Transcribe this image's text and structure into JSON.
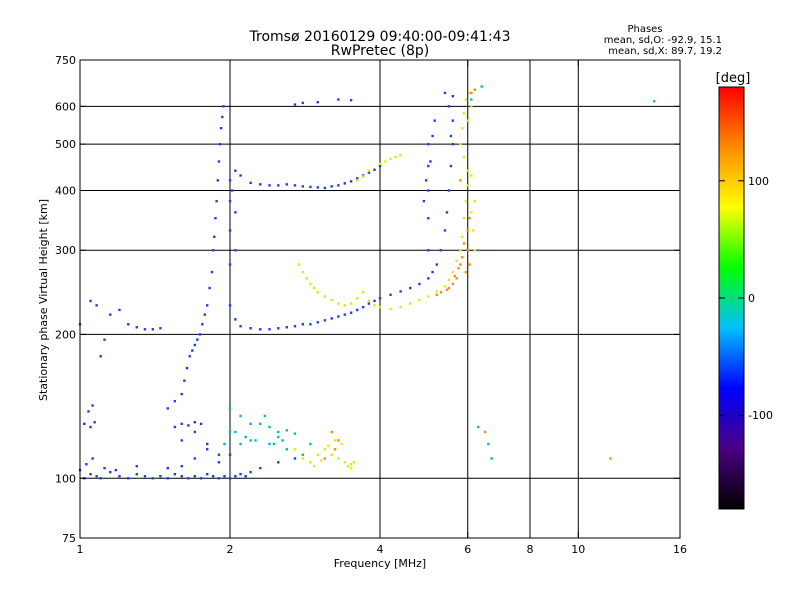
{
  "chart_data": {
    "type": "scatter",
    "title": "Tromsø 20160129 09:40:00-09:41:43",
    "subtitle": "RwPretec (8p)",
    "stats": {
      "heading": "Phases",
      "line1": "mean, sd,O: -92.9, 15.1",
      "line2": "mean, sd,X:  89.7, 19.2"
    },
    "xlabel": "Frequency [MHz]",
    "ylabel": "Stationary phase Virtual Height [km]",
    "x_scale": "log",
    "y_scale": "log",
    "xlim": [
      1,
      16
    ],
    "ylim": [
      75,
      750
    ],
    "x_ticks": [
      1,
      2,
      4,
      6,
      8,
      10,
      16
    ],
    "y_ticks": [
      75,
      100,
      200,
      300,
      400,
      500,
      600,
      750
    ],
    "x_gridlines": [
      2,
      4,
      6,
      8,
      10
    ],
    "y_gridlines": [
      100,
      200,
      300,
      400,
      500,
      600
    ],
    "grid": true,
    "colorbar": {
      "label": "[deg]",
      "min": -180,
      "max": 180,
      "ticks": [
        100,
        0,
        -100
      ],
      "colors": [
        "#000000",
        "#4b0082",
        "#0000ff",
        "#00bfff",
        "#00ff00",
        "#ffff00",
        "#ff8c00",
        "#ff0000"
      ]
    },
    "series": [
      {
        "mode": "O",
        "phase": -100,
        "color": "#1e3cff",
        "points": [
          [
            1.02,
            100
          ],
          [
            1.05,
            102
          ],
          [
            1.08,
            101
          ],
          [
            1.1,
            100
          ],
          [
            1.15,
            103
          ],
          [
            1.2,
            101
          ],
          [
            1.25,
            100
          ],
          [
            1.3,
            102
          ],
          [
            1.35,
            101
          ],
          [
            1.4,
            100
          ],
          [
            1.45,
            101
          ],
          [
            1.5,
            100
          ],
          [
            1.55,
            102
          ],
          [
            1.6,
            101
          ],
          [
            1.65,
            100
          ],
          [
            1.7,
            101
          ],
          [
            1.75,
            100
          ],
          [
            1.8,
            102
          ],
          [
            1.85,
            101
          ],
          [
            1.9,
            100
          ],
          [
            1.95,
            101
          ],
          [
            2.0,
            100
          ],
          [
            2.05,
            101
          ],
          [
            1.0,
            104
          ],
          [
            1.03,
            107
          ],
          [
            1.06,
            110
          ],
          [
            1.12,
            105
          ],
          [
            1.18,
            104
          ],
          [
            1.3,
            106
          ],
          [
            1.5,
            105
          ],
          [
            1.6,
            106
          ],
          [
            1.7,
            110
          ],
          [
            1.8,
            115
          ],
          [
            1.9,
            108
          ],
          [
            2.0,
            112
          ],
          [
            1.02,
            130
          ],
          [
            1.05,
            128
          ],
          [
            1.07,
            131
          ],
          [
            1.04,
            138
          ],
          [
            1.06,
            142
          ],
          [
            1.55,
            128
          ],
          [
            1.6,
            130
          ],
          [
            1.65,
            129
          ],
          [
            1.7,
            131
          ],
          [
            1.75,
            130
          ],
          [
            1.5,
            140
          ],
          [
            1.55,
            145
          ],
          [
            1.6,
            150
          ],
          [
            1.62,
            160
          ],
          [
            1.64,
            170
          ],
          [
            1.66,
            180
          ],
          [
            1.68,
            185
          ],
          [
            1.7,
            190
          ],
          [
            1.72,
            195
          ],
          [
            1.74,
            200
          ],
          [
            1.76,
            210
          ],
          [
            1.78,
            220
          ],
          [
            1.8,
            230
          ],
          [
            1.82,
            250
          ],
          [
            1.84,
            270
          ],
          [
            1.85,
            300
          ],
          [
            1.86,
            320
          ],
          [
            1.87,
            350
          ],
          [
            1.88,
            380
          ],
          [
            1.89,
            420
          ],
          [
            1.9,
            460
          ],
          [
            1.91,
            500
          ],
          [
            1.92,
            540
          ],
          [
            1.93,
            570
          ],
          [
            1.94,
            600
          ],
          [
            1.0,
            210
          ],
          [
            1.05,
            235
          ],
          [
            1.08,
            230
          ],
          [
            1.1,
            180
          ],
          [
            1.12,
            195
          ],
          [
            1.15,
            220
          ],
          [
            1.2,
            225
          ],
          [
            1.25,
            210
          ],
          [
            1.3,
            207
          ],
          [
            1.35,
            205
          ],
          [
            1.4,
            205
          ],
          [
            1.45,
            206
          ],
          [
            2.0,
            280
          ],
          [
            2.05,
            300
          ],
          [
            2.0,
            330
          ],
          [
            2.05,
            360
          ],
          [
            2.0,
            380
          ],
          [
            2.02,
            400
          ],
          [
            2.0,
            420
          ],
          [
            2.05,
            440
          ],
          [
            2.1,
            430
          ],
          [
            2.2,
            415
          ],
          [
            2.3,
            412
          ],
          [
            2.4,
            410
          ],
          [
            2.5,
            410
          ],
          [
            2.6,
            412
          ],
          [
            2.7,
            410
          ],
          [
            2.8,
            408
          ],
          [
            2.9,
            407
          ],
          [
            3.0,
            406
          ],
          [
            3.1,
            405
          ],
          [
            3.2,
            408
          ],
          [
            3.3,
            410
          ],
          [
            3.4,
            414
          ],
          [
            3.5,
            418
          ],
          [
            3.6,
            424
          ],
          [
            3.7,
            430
          ],
          [
            3.8,
            436
          ],
          [
            3.9,
            442
          ],
          [
            4.0,
            450
          ],
          [
            2.0,
            230
          ],
          [
            2.05,
            215
          ],
          [
            2.1,
            208
          ],
          [
            2.2,
            206
          ],
          [
            2.3,
            205
          ],
          [
            2.4,
            205
          ],
          [
            2.5,
            206
          ],
          [
            2.6,
            207
          ],
          [
            2.7,
            208
          ],
          [
            2.8,
            210
          ],
          [
            2.9,
            210
          ],
          [
            3.0,
            212
          ],
          [
            3.1,
            214
          ],
          [
            3.2,
            216
          ],
          [
            3.3,
            218
          ],
          [
            3.4,
            220
          ],
          [
            3.5,
            222
          ],
          [
            3.6,
            225
          ],
          [
            3.7,
            228
          ],
          [
            3.8,
            232
          ],
          [
            3.9,
            235
          ],
          [
            4.0,
            238
          ],
          [
            4.2,
            242
          ],
          [
            4.4,
            246
          ],
          [
            4.6,
            250
          ],
          [
            4.8,
            255
          ],
          [
            5.0,
            262
          ],
          [
            5.1,
            270
          ],
          [
            5.2,
            280
          ],
          [
            5.3,
            300
          ],
          [
            5.4,
            330
          ],
          [
            5.45,
            360
          ],
          [
            5.5,
            400
          ],
          [
            5.55,
            450
          ],
          [
            5.6,
            500
          ],
          [
            5.0,
            300
          ],
          [
            5.0,
            350
          ],
          [
            5.0,
            400
          ],
          [
            5.0,
            450
          ],
          [
            5.0,
            500
          ],
          [
            4.9,
            380
          ],
          [
            4.95,
            420
          ],
          [
            5.05,
            460
          ],
          [
            5.1,
            520
          ],
          [
            5.15,
            560
          ],
          [
            2.7,
            605
          ],
          [
            2.8,
            610
          ],
          [
            3.0,
            612
          ],
          [
            3.3,
            620
          ],
          [
            3.5,
            618
          ],
          [
            5.4,
            640
          ],
          [
            5.6,
            630
          ],
          [
            5.5,
            600
          ],
          [
            5.6,
            560
          ],
          [
            5.55,
            520
          ],
          [
            1.6,
            120
          ],
          [
            1.7,
            125
          ],
          [
            1.8,
            118
          ],
          [
            1.9,
            112
          ],
          [
            2.1,
            102
          ],
          [
            2.15,
            101
          ],
          [
            2.2,
            103
          ],
          [
            2.3,
            105
          ],
          [
            2.5,
            108
          ],
          [
            2.7,
            110
          ]
        ]
      },
      {
        "mode": "X",
        "phase": 90,
        "color": "#e8e800",
        "points": [
          [
            2.75,
            280
          ],
          [
            2.8,
            270
          ],
          [
            2.85,
            262
          ],
          [
            2.9,
            255
          ],
          [
            2.95,
            250
          ],
          [
            3.0,
            245
          ],
          [
            3.1,
            240
          ],
          [
            3.2,
            236
          ],
          [
            3.3,
            232
          ],
          [
            3.4,
            230
          ],
          [
            3.5,
            232
          ],
          [
            3.6,
            238
          ],
          [
            3.7,
            245
          ],
          [
            3.8,
            235
          ],
          [
            3.9,
            230
          ],
          [
            4.0,
            228
          ],
          [
            4.2,
            226
          ],
          [
            4.4,
            228
          ],
          [
            4.6,
            232
          ],
          [
            4.8,
            236
          ],
          [
            5.0,
            240
          ],
          [
            5.2,
            246
          ],
          [
            5.4,
            252
          ],
          [
            5.5,
            260
          ],
          [
            5.6,
            270
          ],
          [
            5.7,
            285
          ],
          [
            5.8,
            300
          ],
          [
            5.85,
            320
          ],
          [
            5.9,
            350
          ],
          [
            5.95,
            380
          ],
          [
            6.0,
            410
          ],
          [
            6.0,
            440
          ],
          [
            5.9,
            470
          ],
          [
            5.8,
            500
          ],
          [
            5.85,
            540
          ],
          [
            5.9,
            580
          ],
          [
            5.95,
            620
          ],
          [
            6.05,
            640
          ],
          [
            6.1,
            600
          ],
          [
            6.0,
            560
          ],
          [
            6.1,
            360
          ],
          [
            6.15,
            330
          ],
          [
            6.2,
            300
          ],
          [
            6.2,
            380
          ],
          [
            6.1,
            430
          ],
          [
            4.0,
            455
          ],
          [
            4.1,
            460
          ],
          [
            4.2,
            466
          ],
          [
            4.3,
            470
          ],
          [
            4.4,
            474
          ],
          [
            3.6,
            420
          ],
          [
            3.7,
            428
          ],
          [
            3.8,
            440
          ],
          [
            2.7,
            115
          ],
          [
            2.8,
            110
          ],
          [
            2.9,
            108
          ],
          [
            3.0,
            112
          ],
          [
            3.1,
            115
          ],
          [
            3.2,
            112
          ],
          [
            3.3,
            110
          ],
          [
            3.4,
            108
          ],
          [
            3.5,
            107
          ],
          [
            3.35,
            118
          ],
          [
            3.25,
            120
          ],
          [
            3.15,
            117
          ],
          [
            3.05,
            109
          ],
          [
            2.95,
            106
          ],
          [
            3.45,
            106
          ],
          [
            3.55,
            108
          ],
          [
            3.5,
            105
          ]
        ]
      },
      {
        "mode": "X",
        "phase": 150,
        "color": "#ff8c00",
        "points": [
          [
            5.5,
            250
          ],
          [
            5.6,
            255
          ],
          [
            5.7,
            262
          ],
          [
            5.75,
            275
          ],
          [
            5.85,
            290
          ],
          [
            5.9,
            310
          ],
          [
            6.0,
            330
          ],
          [
            6.05,
            350
          ],
          [
            6.0,
            300
          ],
          [
            5.8,
            280
          ],
          [
            5.65,
            265
          ],
          [
            5.45,
            248
          ],
          [
            5.3,
            245
          ],
          [
            5.2,
            242
          ],
          [
            6.1,
            640
          ],
          [
            6.2,
            650
          ],
          [
            3.2,
            125
          ],
          [
            3.3,
            120
          ],
          [
            3.25,
            115
          ],
          [
            3.1,
            110
          ],
          [
            5.95,
            270
          ],
          [
            6.05,
            280
          ],
          [
            5.8,
            420
          ],
          [
            6.5,
            125
          ],
          [
            11.6,
            110
          ]
        ]
      },
      {
        "mode": "mixed",
        "phase": 30,
        "color": "#00c878",
        "points": [
          [
            2.3,
            130
          ],
          [
            2.4,
            128
          ],
          [
            2.5,
            125
          ],
          [
            2.6,
            126
          ],
          [
            2.2,
            120
          ],
          [
            2.1,
            118
          ],
          [
            2.35,
            135
          ],
          [
            2.5,
            122
          ],
          [
            2.45,
            118
          ],
          [
            2.55,
            120
          ],
          [
            2.7,
            124
          ],
          [
            2.9,
            118
          ],
          [
            2.6,
            115
          ],
          [
            2.8,
            112
          ]
        ]
      },
      {
        "mode": "mixed",
        "phase": -40,
        "color": "#00b4e6",
        "points": [
          [
            2.0,
            140
          ],
          [
            2.1,
            135
          ],
          [
            2.2,
            130
          ],
          [
            2.05,
            125
          ],
          [
            2.15,
            122
          ],
          [
            2.25,
            120
          ],
          [
            2.4,
            118
          ],
          [
            1.95,
            118
          ],
          [
            2.0,
            125
          ],
          [
            6.3,
            128
          ],
          [
            6.6,
            118
          ],
          [
            6.7,
            110
          ],
          [
            14.2,
            615
          ],
          [
            6.4,
            660
          ],
          [
            6.1,
            620
          ],
          [
            6.3,
            300
          ]
        ]
      }
    ]
  }
}
